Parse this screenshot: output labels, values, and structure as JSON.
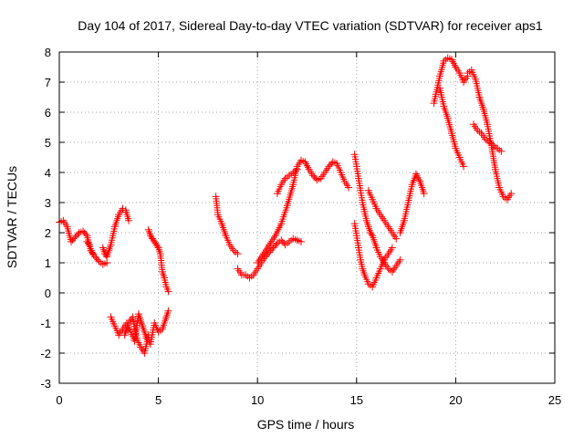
{
  "chart_data": {
    "type": "scatter",
    "title": "Day 104 of 2017, Sidereal Day-to-day VTEC variation (SDTVAR) for receiver aps1",
    "xlabel": "GPS time / hours",
    "ylabel": "SDTVAR / TECUs",
    "xlim": [
      0,
      25
    ],
    "ylim": [
      -3,
      8
    ],
    "xticks": [
      0,
      5,
      10,
      15,
      20,
      25
    ],
    "yticks": [
      -3,
      -2,
      -1,
      0,
      1,
      2,
      3,
      4,
      5,
      6,
      7,
      8
    ],
    "grid": true,
    "legend": "none",
    "marker": "plus",
    "color": "#ff0000",
    "segments": [
      {
        "x": [
          0,
          0.2,
          0.4,
          0.6,
          0.8,
          1.0,
          1.2,
          1.4,
          1.6,
          1.8,
          2.0,
          2.2,
          2.4
        ],
        "y": [
          2.35,
          2.4,
          2.2,
          1.7,
          1.85,
          2.0,
          2.05,
          1.9,
          1.4,
          1.2,
          1.05,
          0.95,
          1.0
        ]
      },
      {
        "x": [
          1.4,
          1.5,
          1.6,
          1.7
        ],
        "y": [
          1.7,
          1.6,
          1.4,
          1.3
        ]
      },
      {
        "x": [
          2.2,
          2.3,
          2.4,
          2.5,
          2.6,
          2.8,
          3.0,
          3.2,
          3.35,
          3.5
        ],
        "y": [
          1.5,
          1.3,
          1.2,
          1.4,
          1.6,
          2.2,
          2.6,
          2.8,
          2.75,
          2.4
        ]
      },
      {
        "x": [
          2.6,
          2.8,
          3.0,
          3.2,
          3.4,
          3.6,
          3.8,
          4.0,
          4.2,
          4.4,
          4.6,
          4.8,
          5.0,
          5.2,
          5.4,
          5.5
        ],
        "y": [
          -0.8,
          -1.1,
          -1.4,
          -1.2,
          -1.0,
          -1.3,
          -1.6,
          -0.7,
          -1.1,
          -1.5,
          -1.7,
          -1.0,
          -1.3,
          -1.2,
          -0.8,
          -0.6
        ]
      },
      {
        "x": [
          3.3,
          3.5,
          3.7,
          3.9,
          4.1,
          4.3,
          4.5
        ],
        "y": [
          -1.4,
          -1.0,
          -0.8,
          -1.5,
          -1.8,
          -2.0,
          -1.4
        ]
      },
      {
        "x": [
          4.5,
          4.6,
          4.7,
          4.8,
          4.9,
          5.0,
          5.1,
          5.2,
          5.3,
          5.4,
          5.5
        ],
        "y": [
          2.1,
          1.9,
          1.8,
          1.7,
          1.6,
          1.5,
          1.3,
          0.7,
          0.5,
          0.2,
          0.05
        ]
      },
      {
        "x": [
          7.9,
          8.0,
          8.2,
          8.4,
          8.6,
          8.8,
          9.0
        ],
        "y": [
          3.2,
          2.6,
          2.3,
          1.9,
          1.6,
          1.4,
          1.3
        ]
      },
      {
        "x": [
          9.0,
          9.2,
          9.4,
          9.6,
          9.8,
          10.0,
          10.2,
          10.4,
          10.6,
          10.8,
          11.0,
          11.2,
          11.4,
          11.6,
          11.8,
          12.0,
          12.2
        ],
        "y": [
          0.8,
          0.6,
          0.6,
          0.5,
          0.6,
          0.8,
          1.0,
          1.2,
          1.35,
          1.5,
          1.65,
          1.75,
          1.6,
          1.7,
          1.8,
          1.75,
          1.7
        ]
      },
      {
        "x": [
          10.0,
          10.3,
          10.6,
          10.9,
          11.2,
          11.5,
          11.8,
          12.0,
          12.2,
          12.4,
          12.6,
          12.8,
          13.0,
          13.2,
          13.4,
          13.6,
          13.8,
          14.0,
          14.2,
          14.4,
          14.6
        ],
        "y": [
          1.0,
          1.3,
          1.6,
          1.9,
          2.3,
          2.9,
          3.6,
          4.2,
          4.4,
          4.35,
          4.1,
          3.9,
          3.75,
          3.8,
          4.0,
          4.2,
          4.35,
          4.3,
          4.0,
          3.7,
          3.5
        ]
      },
      {
        "x": [
          11.0,
          11.2,
          11.4,
          11.6,
          11.8,
          12.0
        ],
        "y": [
          3.3,
          3.6,
          3.8,
          3.9,
          4.0,
          4.1
        ]
      },
      {
        "x": [
          14.9,
          15.0,
          15.1,
          15.2,
          15.3,
          15.4,
          15.5,
          15.6,
          15.7,
          15.8,
          16.0,
          16.2,
          16.4,
          16.6,
          16.8,
          17.0,
          17.2
        ],
        "y": [
          4.6,
          4.2,
          3.8,
          3.4,
          3.0,
          2.7,
          2.4,
          2.2,
          2.0,
          1.9,
          1.5,
          1.2,
          1.0,
          0.8,
          0.7,
          0.9,
          1.1
        ]
      },
      {
        "x": [
          14.9,
          15.0,
          15.1,
          15.2,
          15.3,
          15.4,
          15.6,
          15.8,
          16.0,
          16.2,
          16.4,
          16.6,
          16.8
        ],
        "y": [
          2.3,
          1.9,
          1.5,
          1.1,
          0.8,
          0.6,
          0.3,
          0.2,
          0.5,
          0.8,
          1.1,
          1.3,
          1.5
        ]
      },
      {
        "x": [
          15.6,
          15.8,
          16.0,
          16.2,
          16.4,
          16.6,
          16.8,
          17.0
        ],
        "y": [
          3.4,
          3.1,
          2.8,
          2.6,
          2.4,
          2.2,
          2.0,
          1.8
        ]
      },
      {
        "x": [
          17.2,
          17.4,
          17.6,
          17.8,
          18.0,
          18.2,
          18.4
        ],
        "y": [
          2.0,
          2.4,
          3.0,
          3.6,
          3.95,
          3.7,
          3.3
        ]
      },
      {
        "x": [
          18.9,
          19.0,
          19.2,
          19.4,
          19.6,
          19.8,
          20.0,
          20.2,
          20.4,
          20.6
        ],
        "y": [
          6.3,
          6.6,
          7.2,
          7.7,
          7.8,
          7.75,
          7.5,
          7.3,
          7.0,
          7.2
        ]
      },
      {
        "x": [
          19.2,
          19.4,
          19.6,
          19.8,
          20.0,
          20.2,
          20.4
        ],
        "y": [
          6.8,
          6.2,
          5.8,
          5.3,
          4.8,
          4.5,
          4.2
        ]
      },
      {
        "x": [
          20.6,
          20.8,
          21.0,
          21.2,
          21.4,
          21.6,
          21.8,
          22.0,
          22.2,
          22.4,
          22.6,
          22.8
        ],
        "y": [
          7.3,
          7.4,
          7.1,
          6.5,
          6.1,
          5.6,
          4.9,
          4.1,
          3.5,
          3.2,
          3.1,
          3.3
        ]
      },
      {
        "x": [
          20.9,
          21.1,
          21.3,
          21.5,
          21.7,
          21.9,
          22.1,
          22.3
        ],
        "y": [
          5.6,
          5.4,
          5.3,
          5.1,
          5.0,
          4.9,
          4.8,
          4.7
        ]
      }
    ]
  }
}
